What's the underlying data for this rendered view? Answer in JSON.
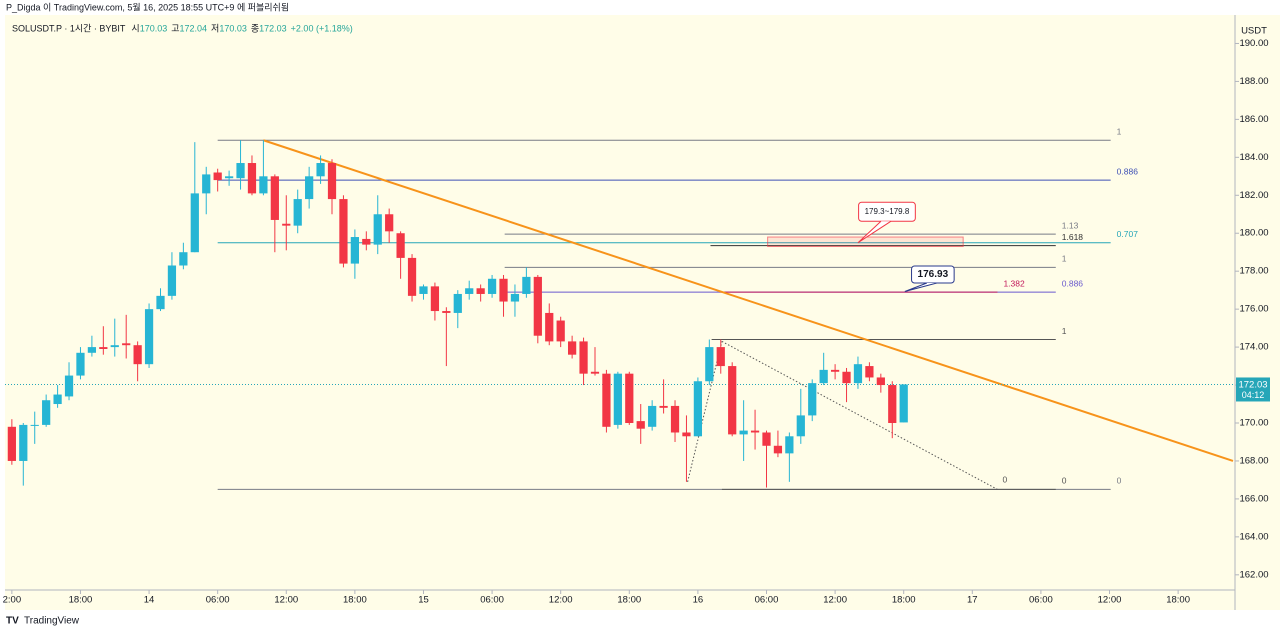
{
  "header": {
    "publisher": "P_Digda 이 TradingView.com, 5월 16, 2025 18:55 UTC+9 에 퍼블리쉬됨",
    "symbol": "SOLUSDT.P · 1시간 · BYBIT",
    "ohlc": [
      {
        "label": "시",
        "value": "170.03"
      },
      {
        "label": "고",
        "value": "172.04"
      },
      {
        "label": "저",
        "value": "170.03"
      },
      {
        "label": "종",
        "value": "172.03"
      }
    ],
    "change": "+2.00 (+1.18%)"
  },
  "footer": {
    "brand": "TradingView"
  },
  "chart_data": {
    "type": "candlestick",
    "currency": "USDT",
    "up_color": "#26b5d4",
    "down_color": "#f23645",
    "xlim": [
      -0.6,
      106.8
    ],
    "ylim": [
      161.2,
      191.5
    ],
    "xticks": [
      {
        "value": 0,
        "label": "2:00"
      },
      {
        "value": 6,
        "label": "18:00"
      },
      {
        "value": 12,
        "label": "14"
      },
      {
        "value": 18,
        "label": "06:00"
      },
      {
        "value": 24,
        "label": "12:00"
      },
      {
        "value": 30,
        "label": "18:00"
      },
      {
        "value": 36,
        "label": "15"
      },
      {
        "value": 42,
        "label": "06:00"
      },
      {
        "value": 48,
        "label": "12:00"
      },
      {
        "value": 54,
        "label": "18:00"
      },
      {
        "value": 60,
        "label": "16"
      },
      {
        "value": 66,
        "label": "06:00"
      },
      {
        "value": 72,
        "label": "12:00"
      },
      {
        "value": 78,
        "label": "18:00"
      },
      {
        "value": 84,
        "label": "17"
      },
      {
        "value": 90,
        "label": "06:00"
      },
      {
        "value": 96,
        "label": "12:00"
      },
      {
        "value": 102,
        "label": "18:00"
      }
    ],
    "yticks": [
      {
        "value": 162,
        "label": "162.00"
      },
      {
        "value": 164,
        "label": "164.00"
      },
      {
        "value": 166,
        "label": "166.00"
      },
      {
        "value": 168,
        "label": "168.00"
      },
      {
        "value": 170,
        "label": "170.00"
      },
      {
        "value": 172,
        "label": "172.00"
      },
      {
        "value": 174,
        "label": "174.00"
      },
      {
        "value": 176,
        "label": "176.00"
      },
      {
        "value": 178,
        "label": "178.00"
      },
      {
        "value": 180,
        "label": "180.00"
      },
      {
        "value": 182,
        "label": "182.00"
      },
      {
        "value": 184,
        "label": "184.00"
      },
      {
        "value": 186,
        "label": "186.00"
      },
      {
        "value": 188,
        "label": "188.00"
      },
      {
        "value": 190,
        "label": "190.00"
      }
    ],
    "x": [
      0,
      1,
      2,
      3,
      4,
      5,
      6,
      7,
      8,
      9,
      10,
      11,
      12,
      13,
      14,
      15,
      16,
      17,
      18,
      19,
      20,
      21,
      22,
      23,
      24,
      25,
      26,
      27,
      28,
      29,
      30,
      31,
      32,
      33,
      34,
      35,
      36,
      37,
      38,
      39,
      40,
      41,
      42,
      43,
      44,
      45,
      46,
      47,
      48,
      49,
      50,
      51,
      52,
      53,
      54,
      55,
      56,
      57,
      58,
      59,
      60,
      61,
      62,
      63,
      64,
      65,
      66,
      67,
      68,
      69,
      70,
      71,
      72,
      73,
      74,
      75,
      76,
      77,
      78
    ],
    "open": [
      169.8,
      168.0,
      169.9,
      169.9,
      171.0,
      171.4,
      172.5,
      173.7,
      174.0,
      174.0,
      174.2,
      174.1,
      173.1,
      176.0,
      176.7,
      178.3,
      179.0,
      182.1,
      183.2,
      182.9,
      182.9,
      183.7,
      182.1,
      183.0,
      180.5,
      180.4,
      181.8,
      183.0,
      183.7,
      181.8,
      178.4,
      179.7,
      179.4,
      181.0,
      180.0,
      178.7,
      176.8,
      177.2,
      175.9,
      175.8,
      176.8,
      177.1,
      176.8,
      177.6,
      176.4,
      176.8,
      177.7,
      175.8,
      175.4,
      174.3,
      174.3,
      172.7,
      172.6,
      169.9,
      172.6,
      170.1,
      169.8,
      170.9,
      170.9,
      169.5,
      169.3,
      172.2,
      174.0,
      173.0,
      169.4,
      169.6,
      169.5,
      168.8,
      168.4,
      169.3,
      170.4,
      172.1,
      172.8,
      172.7,
      172.1,
      173.0,
      172.4,
      172.0,
      170.03
    ],
    "high": [
      170.2,
      170.0,
      170.6,
      171.5,
      172.0,
      173.2,
      174.0,
      174.6,
      175.1,
      175.5,
      175.7,
      174.3,
      176.3,
      177.1,
      179.0,
      179.5,
      184.8,
      183.5,
      183.4,
      183.3,
      184.9,
      184.1,
      184.9,
      183.1,
      182.0,
      182.3,
      183.5,
      184.1,
      183.9,
      182.0,
      180.2,
      180.1,
      182.0,
      181.3,
      180.1,
      178.9,
      177.3,
      177.4,
      176.1,
      177.0,
      177.5,
      177.3,
      177.8,
      177.8,
      177.3,
      178.2,
      177.8,
      176.3,
      175.6,
      174.6,
      174.5,
      174.0,
      172.8,
      172.7,
      172.7,
      171.0,
      171.2,
      172.3,
      171.2,
      170.4,
      172.4,
      174.4,
      174.4,
      173.2,
      171.2,
      170.7,
      169.6,
      169.6,
      169.5,
      171.8,
      172.3,
      173.7,
      173.1,
      172.9,
      173.5,
      173.2,
      172.6,
      172.2,
      172.04
    ],
    "low": [
      167.8,
      166.7,
      168.9,
      169.8,
      170.8,
      171.2,
      172.3,
      173.5,
      173.6,
      173.5,
      173.4,
      172.2,
      172.9,
      175.9,
      176.5,
      178.1,
      179.0,
      181.0,
      182.2,
      182.5,
      182.3,
      182.0,
      182.0,
      179.0,
      179.1,
      180.0,
      181.3,
      182.6,
      181.0,
      178.2,
      177.6,
      179.1,
      178.9,
      179.5,
      177.6,
      176.4,
      176.5,
      175.4,
      173.0,
      175.0,
      176.5,
      176.4,
      176.6,
      175.6,
      175.6,
      176.6,
      174.2,
      174.1,
      174.0,
      173.4,
      172.0,
      172.5,
      169.5,
      169.7,
      169.9,
      168.9,
      169.6,
      170.5,
      169.0,
      166.9,
      169.3,
      172.0,
      172.6,
      169.3,
      168.0,
      168.6,
      166.6,
      168.2,
      166.9,
      168.9,
      170.1,
      172.0,
      172.3,
      171.1,
      171.8,
      172.2,
      171.6,
      169.2,
      170.03
    ],
    "close": [
      168.0,
      169.9,
      169.9,
      171.2,
      171.5,
      172.5,
      173.7,
      174.0,
      173.9,
      174.1,
      174.1,
      173.1,
      176.0,
      176.7,
      178.3,
      179.0,
      182.1,
      183.1,
      182.8,
      183.0,
      183.7,
      182.1,
      183.0,
      180.7,
      180.4,
      181.8,
      183.0,
      183.7,
      181.8,
      178.4,
      179.8,
      179.4,
      181.0,
      180.1,
      178.7,
      176.7,
      177.2,
      175.9,
      175.8,
      176.8,
      177.1,
      176.8,
      177.6,
      176.4,
      176.8,
      177.7,
      174.6,
      174.3,
      174.3,
      173.6,
      172.6,
      172.6,
      169.8,
      172.6,
      170.0,
      169.7,
      170.9,
      170.8,
      169.5,
      169.3,
      172.2,
      174.0,
      173.0,
      169.4,
      169.6,
      169.5,
      168.8,
      168.4,
      169.3,
      170.4,
      172.1,
      172.8,
      172.7,
      172.1,
      173.1,
      172.4,
      172.0,
      170.0,
      172.03
    ],
    "last_price": {
      "value": 172.03,
      "label": "172.03",
      "countdown": "04:12",
      "color": "#26a6b8"
    },
    "levels": [
      {
        "label": "1",
        "price": 184.9,
        "x": [
          18.0,
          96.1
        ],
        "color": "#787b86"
      },
      {
        "label": "0.886",
        "price": 182.8,
        "x": [
          18.0,
          96.1
        ],
        "color": "#3f51b5"
      },
      {
        "label": "0.707",
        "price": 179.5,
        "x": [
          18.0,
          96.1
        ],
        "color": "#26a6b8"
      },
      {
        "label": "0",
        "price": 166.5,
        "x": [
          18.0,
          96.1
        ],
        "color": "#787b86"
      },
      {
        "label": "1.13",
        "price": 179.95,
        "x": [
          43.1,
          91.3
        ],
        "color": "#787b86"
      },
      {
        "label": "1.618",
        "price": 179.35,
        "x": [
          61.1,
          91.3
        ],
        "color": "#333333"
      },
      {
        "label": "1",
        "price": 178.2,
        "x": [
          43.1,
          91.3
        ],
        "color": "#787b86"
      },
      {
        "label": "0.886",
        "price": 176.9,
        "x": [
          43.1,
          91.3
        ],
        "color": "#6a5acd"
      },
      {
        "label": "1.382",
        "price": 176.9,
        "x": [
          61.9,
          86.2
        ],
        "color": "#c2185b"
      },
      {
        "label": "1",
        "price": 174.4,
        "x": [
          61.2,
          91.3
        ],
        "color": "#555555"
      },
      {
        "label": "0",
        "price": 166.5,
        "x": [
          62.1,
          91.3
        ],
        "color": "#555555"
      }
    ],
    "trend_line": {
      "x": [
        22.0,
        106.8
      ],
      "y": [
        184.9,
        168.0
      ],
      "color": "#f7931a"
    },
    "dotted_lines": [
      {
        "x": [
          62.1,
          86.2
        ],
        "y": [
          174.3,
          166.5
        ],
        "label": "0"
      },
      {
        "x": [
          59.1,
          62.1
        ],
        "y": [
          166.9,
          174.3
        ]
      }
    ],
    "zone": {
      "x": [
        66.1,
        83.2
      ],
      "y": [
        179.3,
        179.8
      ],
      "color": "#f23645"
    },
    "callouts": [
      {
        "text": "179.3~179.8",
        "x": 74.0,
        "y": 179.5,
        "color": "#f23645"
      },
      {
        "text": "176.93",
        "x": 78.1,
        "y": 176.93,
        "color": "#2a3a8c"
      }
    ]
  }
}
